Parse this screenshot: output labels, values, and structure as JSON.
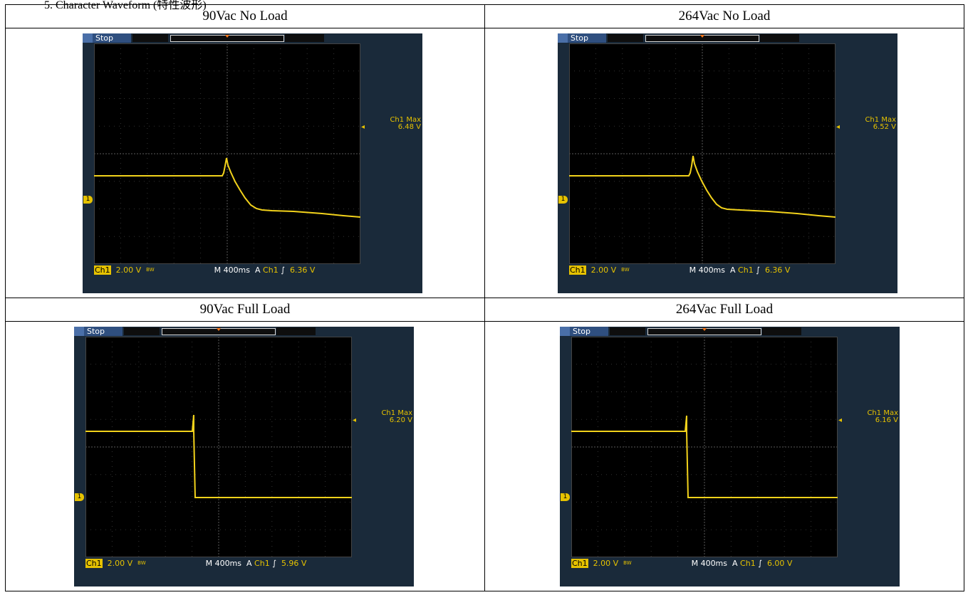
{
  "heading": "5. Character Waveform (特性波形)",
  "panels": [
    {
      "title": "90Vac No Load",
      "scope": {
        "status": "Stop",
        "meas_label": "Ch1 Max",
        "meas_value": "6.48 V",
        "channel": "Ch1",
        "volts_div": "2.00 V",
        "bw": "BW",
        "timebase": "M 400ms",
        "trig_mode": "A",
        "trig_source": "Ch1",
        "trig_slope": "∫",
        "trig_level": "6.36 V",
        "marker": "1",
        "trace": [
          [
            0,
            200
          ],
          [
            180,
            200
          ],
          [
            182,
            196
          ],
          [
            184,
            186
          ],
          [
            186,
            175
          ],
          [
            188,
            185
          ],
          [
            192,
            195
          ],
          [
            198,
            208
          ],
          [
            205,
            220
          ],
          [
            212,
            231
          ],
          [
            220,
            241
          ],
          [
            228,
            246
          ],
          [
            236,
            248
          ],
          [
            250,
            249
          ],
          [
            280,
            250
          ],
          [
            320,
            253
          ],
          [
            350,
            256
          ],
          [
            374,
            258
          ]
        ]
      }
    },
    {
      "title": "264Vac No Load",
      "scope": {
        "status": "Stop",
        "meas_label": "Ch1 Max",
        "meas_value": "6.52 V",
        "channel": "Ch1",
        "volts_div": "2.00 V",
        "bw": "BW",
        "timebase": "M 400ms",
        "trig_mode": "A",
        "trig_source": "Ch1",
        "trig_slope": "∫",
        "trig_level": "6.36 V",
        "marker": "1",
        "trace": [
          [
            0,
            200
          ],
          [
            168,
            200
          ],
          [
            170,
            196
          ],
          [
            172,
            186
          ],
          [
            174,
            172
          ],
          [
            176,
            183
          ],
          [
            180,
            194
          ],
          [
            186,
            207
          ],
          [
            193,
            220
          ],
          [
            200,
            231
          ],
          [
            207,
            240
          ],
          [
            214,
            245
          ],
          [
            222,
            247
          ],
          [
            240,
            248
          ],
          [
            280,
            250
          ],
          [
            320,
            253
          ],
          [
            350,
            256
          ],
          [
            374,
            258
          ]
        ]
      }
    },
    {
      "title": "90Vac Full Load",
      "scope": {
        "status": "Stop",
        "meas_label": "Ch1 Max",
        "meas_value": "6.20 V",
        "channel": "Ch1",
        "volts_div": "2.00 V",
        "bw": "BW",
        "timebase": "M 400ms",
        "trig_mode": "A",
        "trig_source": "Ch1",
        "trig_slope": "∫",
        "trig_level": "5.96 V",
        "marker": "1",
        "trace": [
          [
            0,
            147
          ],
          [
            150,
            147
          ],
          [
            152,
            124
          ],
          [
            152,
            147
          ],
          [
            154,
            240
          ],
          [
            374,
            240
          ]
        ]
      }
    },
    {
      "title": "264Vac Full Load",
      "scope": {
        "status": "Stop",
        "meas_label": "Ch1 Max",
        "meas_value": "6.16 V",
        "channel": "Ch1",
        "volts_div": "2.00 V",
        "bw": "BW",
        "timebase": "M 400ms",
        "trig_mode": "A",
        "trig_source": "Ch1",
        "trig_slope": "∫",
        "trig_level": "6.00 V",
        "marker": "1",
        "trace": [
          [
            0,
            147
          ],
          [
            160,
            147
          ],
          [
            162,
            125
          ],
          [
            162,
            147
          ],
          [
            164,
            240
          ],
          [
            374,
            240
          ]
        ]
      }
    }
  ]
}
